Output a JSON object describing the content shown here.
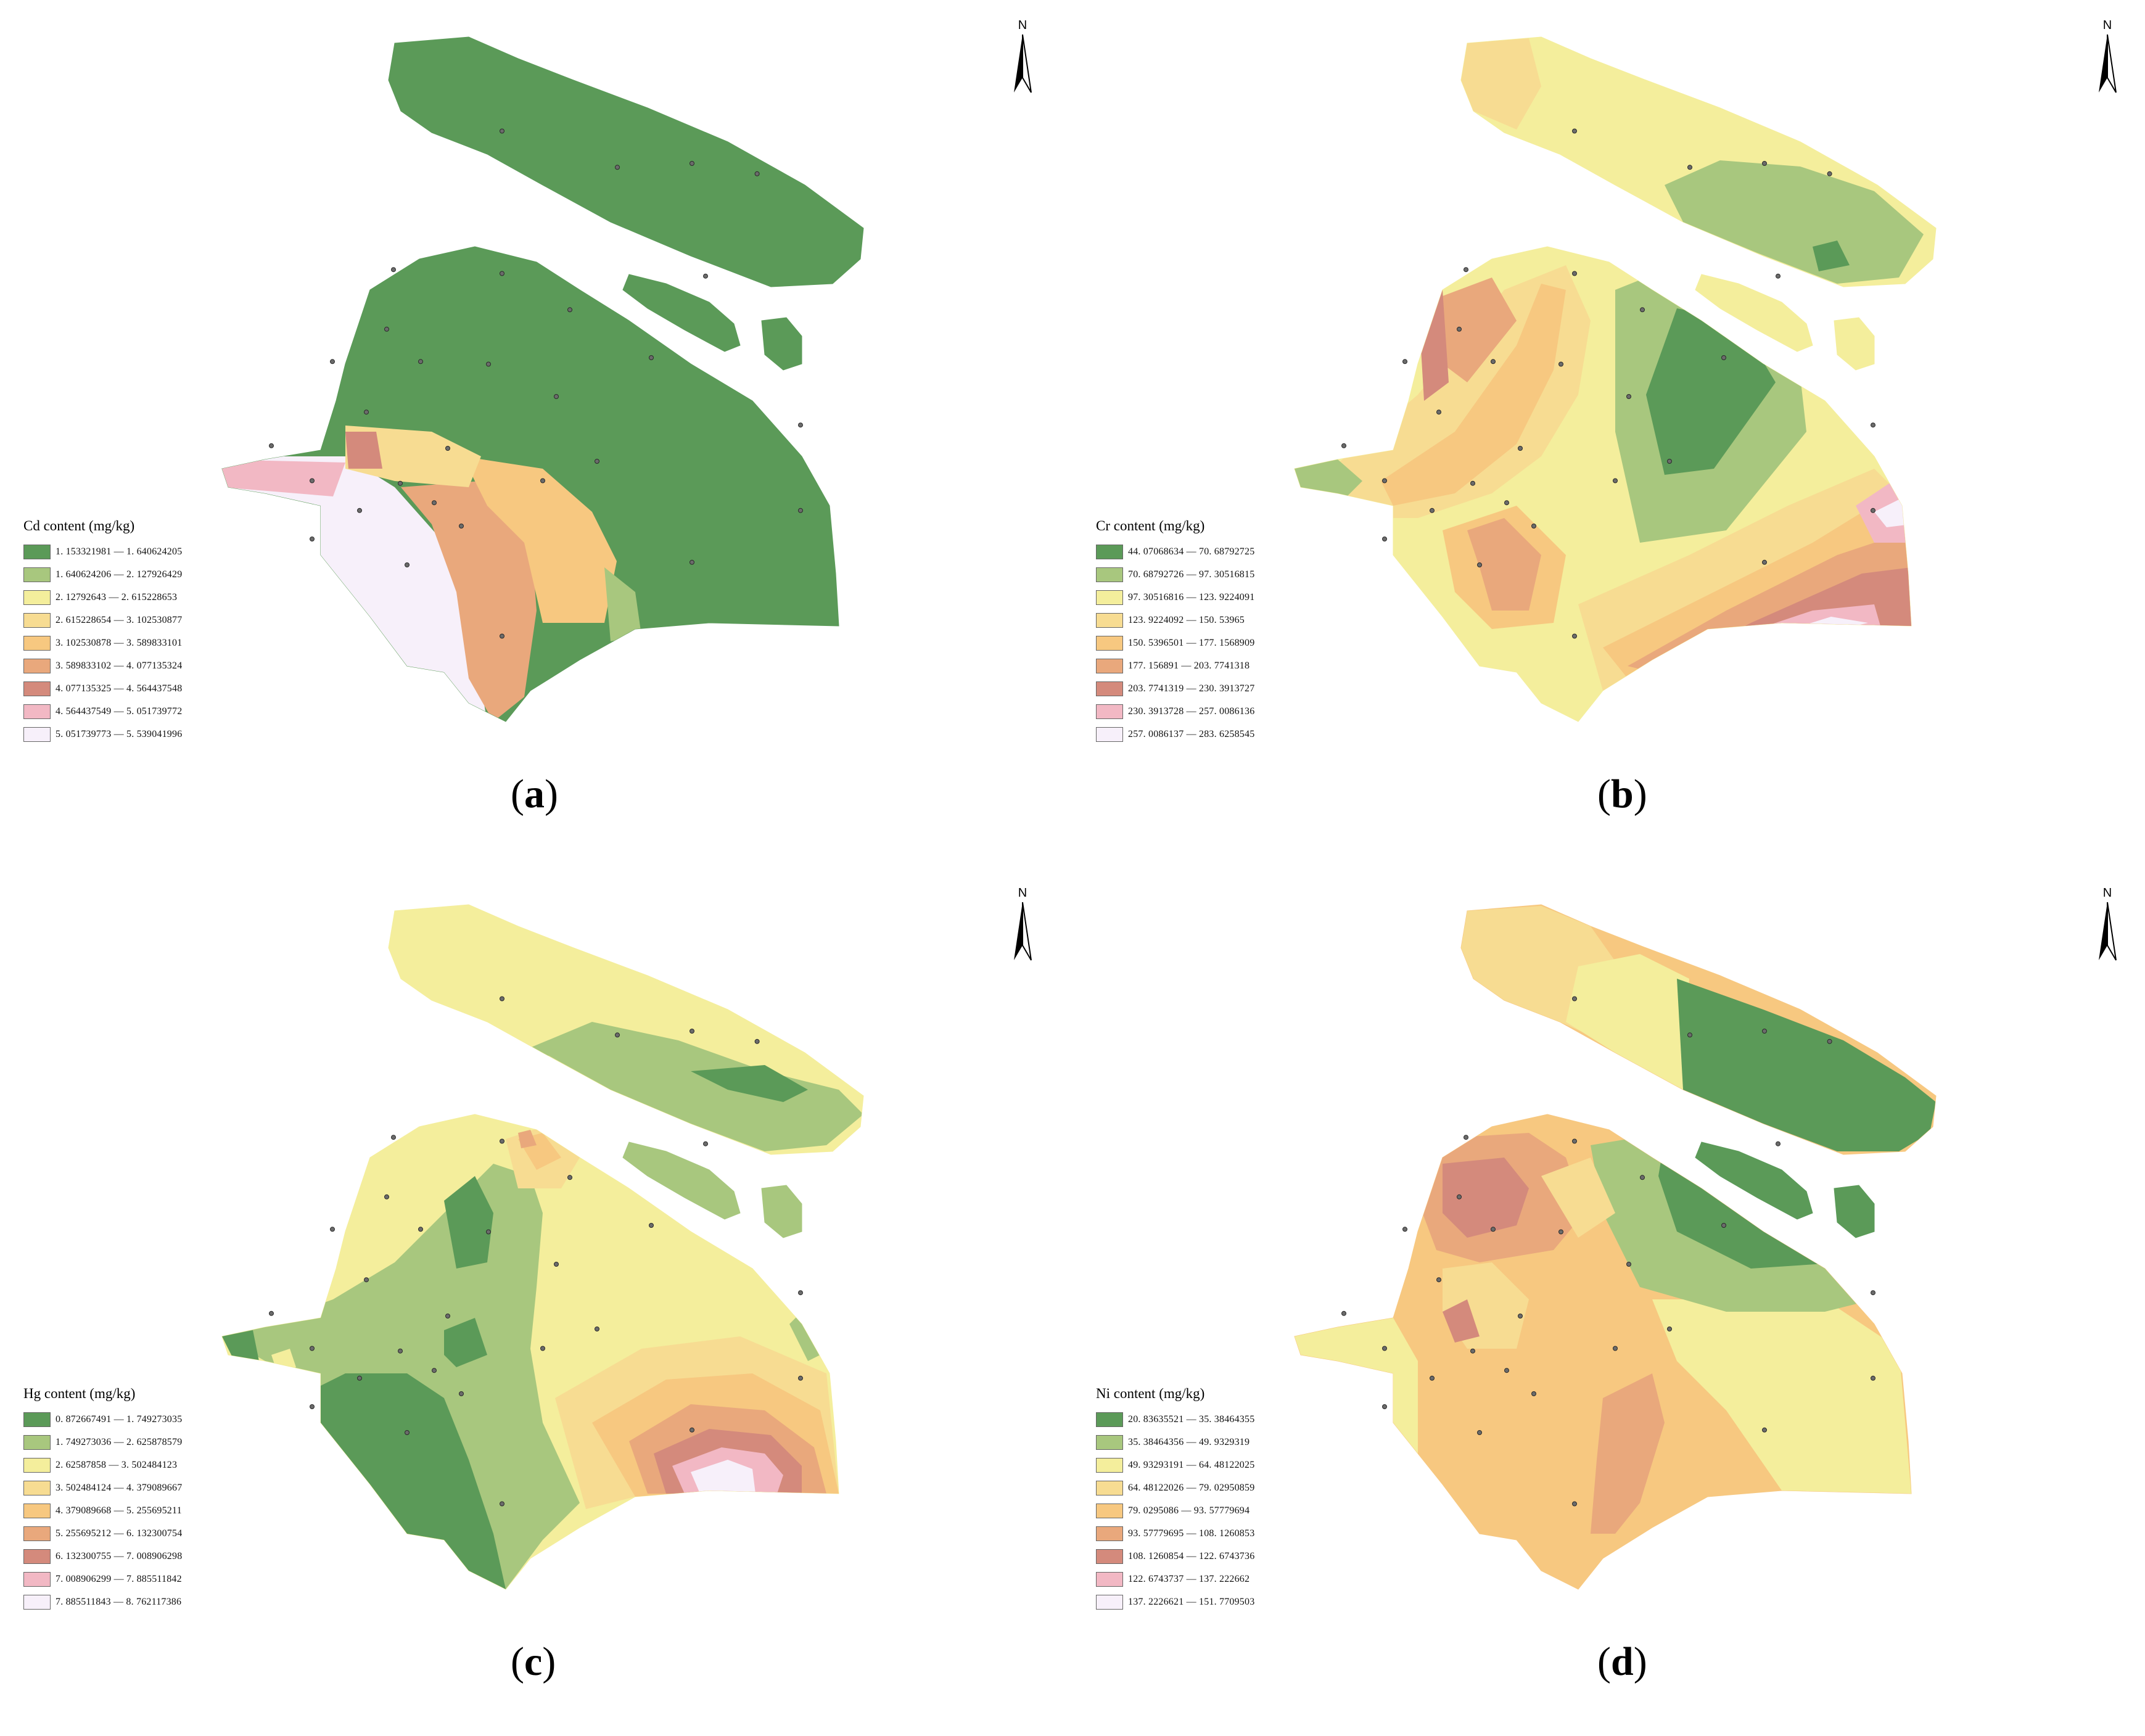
{
  "colors": [
    "#5b9a58",
    "#a8c77e",
    "#f4ee9c",
    "#f7dc92",
    "#f7c880",
    "#e9a87c",
    "#d48a7c",
    "#f2b8c4",
    "#f7f0fa"
  ],
  "north_arrow": "N",
  "panels": [
    {
      "id": "a",
      "caption": "a",
      "legend_title": "Cd content (mg/kg)",
      "classes": [
        "1. 153321981 — 1. 640624205",
        "1. 640624206 — 2. 127926429",
        "2. 12792643 — 2. 615228653",
        "2. 615228654 — 3. 102530877",
        "3. 102530878 — 3. 589833101",
        "3. 589833102 — 4. 077135324",
        "4. 077135325 — 4. 564437548",
        "4. 564437549 — 5. 051739772",
        "5. 051739773 — 5. 539041996"
      ]
    },
    {
      "id": "b",
      "caption": "b",
      "legend_title": "Cr content (mg/kg)",
      "classes": [
        "44. 07068634 — 70. 68792725",
        "70. 68792726 — 97. 30516815",
        "97. 30516816 — 123. 9224091",
        "123. 9224092 — 150. 53965",
        "150. 5396501 — 177. 1568909",
        "177. 156891 — 203. 7741318",
        "203. 7741319 — 230. 3913727",
        "230. 3913728 — 257. 0086136",
        "257. 0086137 — 283. 6258545"
      ]
    },
    {
      "id": "c",
      "caption": "c",
      "legend_title": "Hg content (mg/kg)",
      "classes": [
        "0. 872667491 — 1. 749273035",
        "1. 749273036 — 2. 625878579",
        "2. 62587858 — 3. 502484123",
        "3. 502484124 — 4. 379089667",
        "4. 379089668 — 5. 255695211",
        "5. 255695212 — 6. 132300754",
        "6. 132300755 — 7. 008906298",
        "7. 008906299 — 7. 885511842",
        "7. 885511843 — 8. 762117386"
      ]
    },
    {
      "id": "d",
      "caption": "d",
      "legend_title": "Ni content (mg/kg)",
      "classes": [
        "20. 83635521 — 35. 38464355",
        "35. 38464356 — 49. 9329319",
        "49. 93293191 — 64. 48122025",
        "64. 48122026 — 79. 02950859",
        "79. 0295086 — 93. 57779694",
        "93. 57779695 — 108. 1260853",
        "108. 1260854 — 122. 6743736",
        "122. 6743737 — 137. 222662",
        "137. 2226621 — 151. 7709503"
      ]
    }
  ]
}
